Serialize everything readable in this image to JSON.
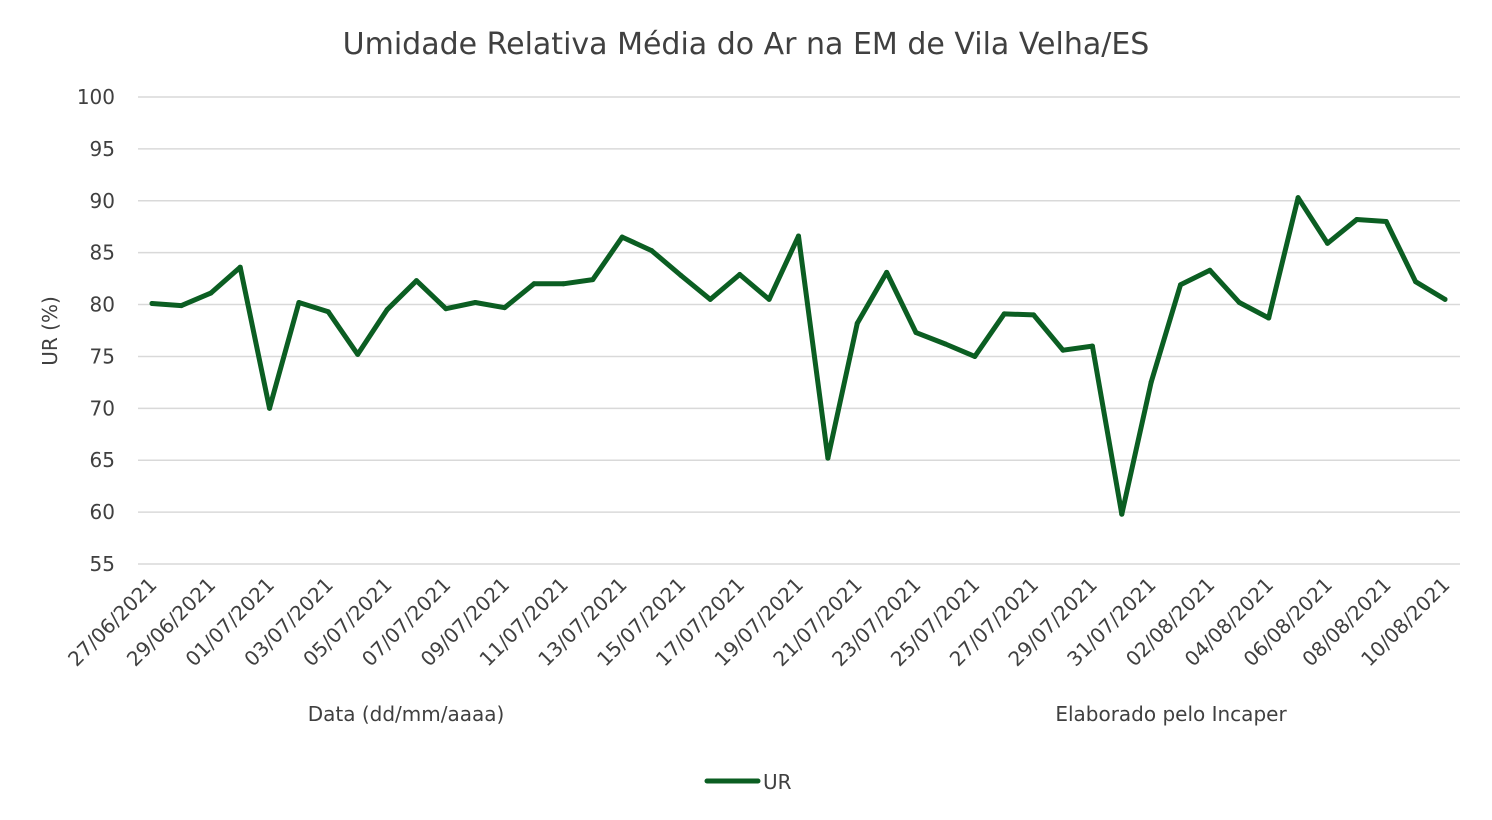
{
  "chart_data": {
    "type": "line",
    "title": "Umidade Relativa Média do Ar na EM de Vila Velha/ES",
    "xlabel": "Data (dd/mm/aaaa)",
    "ylabel": "UR (%)",
    "credit": "Elaborado pelo Incaper",
    "ylim": [
      55,
      100
    ],
    "yticks": [
      55,
      60,
      65,
      70,
      75,
      80,
      85,
      90,
      95,
      100
    ],
    "grid": true,
    "legend_position": "bottom",
    "x": [
      "27/06/2021",
      "28/06/2021",
      "29/06/2021",
      "30/06/2021",
      "01/07/2021",
      "02/07/2021",
      "03/07/2021",
      "04/07/2021",
      "05/07/2021",
      "06/07/2021",
      "07/07/2021",
      "08/07/2021",
      "09/07/2021",
      "10/07/2021",
      "11/07/2021",
      "12/07/2021",
      "13/07/2021",
      "14/07/2021",
      "15/07/2021",
      "16/07/2021",
      "17/07/2021",
      "18/07/2021",
      "19/07/2021",
      "20/07/2021",
      "21/07/2021",
      "22/07/2021",
      "23/07/2021",
      "24/07/2021",
      "25/07/2021",
      "26/07/2021",
      "27/07/2021",
      "28/07/2021",
      "29/07/2021",
      "30/07/2021",
      "31/07/2021",
      "01/08/2021",
      "02/08/2021",
      "03/08/2021",
      "04/08/2021",
      "05/08/2021",
      "06/08/2021",
      "07/08/2021",
      "08/08/2021",
      "09/08/2021",
      "10/08/2021"
    ],
    "x_tick_labels": [
      "27/06/2021",
      "29/06/2021",
      "01/07/2021",
      "03/07/2021",
      "05/07/2021",
      "07/07/2021",
      "09/07/2021",
      "11/07/2021",
      "13/07/2021",
      "15/07/2021",
      "17/07/2021",
      "19/07/2021",
      "21/07/2021",
      "23/07/2021",
      "25/07/2021",
      "27/07/2021",
      "29/07/2021",
      "31/07/2021",
      "02/08/2021",
      "04/08/2021",
      "06/08/2021",
      "08/08/2021",
      "10/08/2021"
    ],
    "series": [
      {
        "name": "UR",
        "color": "#0b5e22",
        "values": [
          80.1,
          79.9,
          81.1,
          83.6,
          70.0,
          80.2,
          79.3,
          75.2,
          79.5,
          82.3,
          79.6,
          80.2,
          79.7,
          82.0,
          82.0,
          82.4,
          86.5,
          85.2,
          82.8,
          80.5,
          82.9,
          80.5,
          86.6,
          65.2,
          78.2,
          83.1,
          77.3,
          76.2,
          75.0,
          79.1,
          79.0,
          75.6,
          76.0,
          59.8,
          72.5,
          81.9,
          83.3,
          80.2,
          78.7,
          90.3,
          85.9,
          88.2,
          88.0,
          82.2,
          80.5
        ]
      }
    ]
  }
}
